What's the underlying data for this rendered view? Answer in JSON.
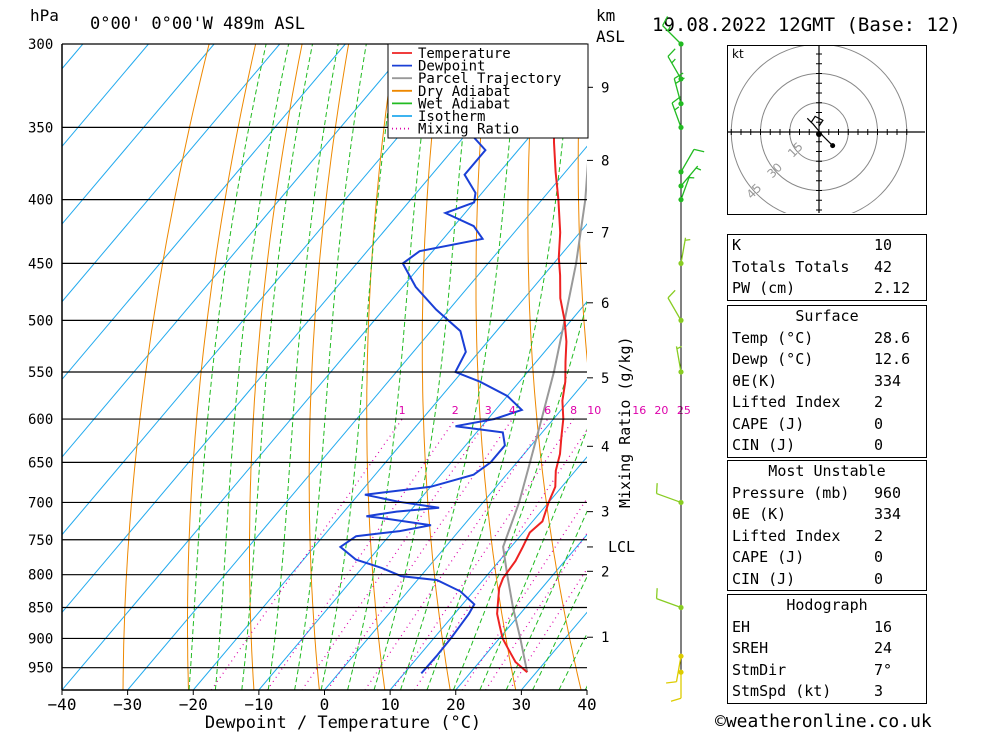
{
  "header": {
    "location": "0°00' 0°00'W 489m ASL",
    "pressure_unit": "hPa",
    "km_unit": "km",
    "asl": "ASL",
    "datetime": "19.08.2022 12GMT (Base: 12)"
  },
  "footer": {
    "copyright": "©weatheronline.co.uk"
  },
  "chart_data": {
    "type": "skew-t",
    "xlabel": "Dewpoint / Temperature (°C)",
    "mixing_ratio_label": "Mixing Ratio (g/kg)",
    "x_ticks": [
      -40,
      -30,
      -20,
      -10,
      0,
      10,
      20,
      30,
      40
    ],
    "x_range": [
      -40,
      40
    ],
    "pressure_ticks": [
      300,
      350,
      400,
      450,
      500,
      550,
      600,
      650,
      700,
      750,
      800,
      850,
      900,
      950
    ],
    "pressure_range": [
      300,
      990
    ],
    "km_ticks": [
      {
        "label": "1",
        "p": 898
      },
      {
        "label": "2",
        "p": 795
      },
      {
        "label": "3",
        "p": 712
      },
      {
        "label": "4",
        "p": 631
      },
      {
        "label": "5",
        "p": 556
      },
      {
        "label": "6",
        "p": 484
      },
      {
        "label": "7",
        "p": 425
      },
      {
        "label": "8",
        "p": 372
      },
      {
        "label": "9",
        "p": 325
      }
    ],
    "lcl": {
      "label": "LCL",
      "p": 760
    },
    "mixing_ratio_values": [
      "1",
      "2",
      "3",
      "4",
      "6",
      "8",
      "10",
      "16",
      "20",
      "25"
    ],
    "legend": [
      {
        "name": "Temperature",
        "color": "#ee2222",
        "style": "solid"
      },
      {
        "name": "Dewpoint",
        "color": "#1a3fd6",
        "style": "solid"
      },
      {
        "name": "Parcel Trajectory",
        "color": "#999999",
        "style": "solid"
      },
      {
        "name": "Dry Adiabat",
        "color": "#ee8800",
        "style": "solid"
      },
      {
        "name": "Wet Adiabat",
        "color": "#22bb22",
        "style": "solid"
      },
      {
        "name": "Isotherm",
        "color": "#22aaee",
        "style": "solid"
      },
      {
        "name": "Mixing Ratio",
        "color": "#dd00aa",
        "style": "dotted"
      }
    ],
    "temperature": [
      [
        958,
        28.6
      ],
      [
        940,
        25.5
      ],
      [
        920,
        23
      ],
      [
        900,
        20.5
      ],
      [
        880,
        18.5
      ],
      [
        860,
        16.5
      ],
      [
        840,
        15
      ],
      [
        820,
        13.5
      ],
      [
        805,
        12.8
      ],
      [
        780,
        12.5
      ],
      [
        760,
        11.8
      ],
      [
        740,
        11
      ],
      [
        725,
        11.5
      ],
      [
        700,
        10
      ],
      [
        680,
        9
      ],
      [
        660,
        7
      ],
      [
        640,
        5.5
      ],
      [
        620,
        3.5
      ],
      [
        600,
        1.5
      ],
      [
        580,
        -1
      ],
      [
        560,
        -3
      ],
      [
        540,
        -5.5
      ],
      [
        520,
        -8
      ],
      [
        500,
        -11
      ],
      [
        480,
        -14.5
      ],
      [
        460,
        -17.5
      ],
      [
        445,
        -20
      ],
      [
        425,
        -23
      ],
      [
        400,
        -27.5
      ],
      [
        380,
        -31.5
      ],
      [
        360,
        -35.5
      ],
      [
        340,
        -39.5
      ],
      [
        320,
        -43.5
      ],
      [
        300,
        -48
      ]
    ],
    "dewpoint": [
      [
        960,
        12.6
      ],
      [
        930,
        12.7
      ],
      [
        900,
        12.6
      ],
      [
        880,
        12.4
      ],
      [
        860,
        12.2
      ],
      [
        845,
        11.8
      ],
      [
        825,
        8
      ],
      [
        808,
        3
      ],
      [
        802,
        -3
      ],
      [
        790,
        -7
      ],
      [
        778,
        -12
      ],
      [
        760,
        -16
      ],
      [
        745,
        -15
      ],
      [
        738,
        -9
      ],
      [
        730,
        -5
      ],
      [
        722,
        -12
      ],
      [
        718,
        -16
      ],
      [
        712,
        -12
      ],
      [
        707,
        -6
      ],
      [
        699,
        -13
      ],
      [
        690,
        -19
      ],
      [
        680,
        -10
      ],
      [
        665,
        -5
      ],
      [
        650,
        -4
      ],
      [
        630,
        -4
      ],
      [
        615,
        -6
      ],
      [
        608,
        -14
      ],
      [
        600,
        -9
      ],
      [
        590,
        -6
      ],
      [
        575,
        -10
      ],
      [
        560,
        -16
      ],
      [
        550,
        -21
      ],
      [
        530,
        -22
      ],
      [
        510,
        -25.5
      ],
      [
        490,
        -32
      ],
      [
        470,
        -38
      ],
      [
        450,
        -43
      ],
      [
        440,
        -42
      ],
      [
        430,
        -34
      ],
      [
        420,
        -37
      ],
      [
        410,
        -43
      ],
      [
        402,
        -40
      ],
      [
        395,
        -41
      ],
      [
        382,
        -45
      ],
      [
        365,
        -45
      ],
      [
        355,
        -49
      ],
      [
        345,
        -56
      ],
      [
        335,
        -60
      ],
      [
        325,
        -65
      ],
      [
        315,
        -64
      ],
      [
        300,
        -71
      ]
    ],
    "parcel": [
      [
        958,
        28.6
      ],
      [
        900,
        23.2
      ],
      [
        850,
        18.1
      ],
      [
        800,
        13.0
      ],
      [
        760,
        8.8
      ],
      [
        700,
        5.5
      ],
      [
        650,
        2.0
      ],
      [
        600,
        -1.8
      ],
      [
        550,
        -6.0
      ],
      [
        500,
        -11.0
      ],
      [
        450,
        -16.6
      ],
      [
        400,
        -23.4
      ],
      [
        350,
        -31.9
      ],
      [
        300,
        -42.5
      ]
    ],
    "wind_barbs": [
      {
        "p": 958,
        "dir": 180,
        "kt": 10
      },
      {
        "p": 930,
        "dir": 190,
        "kt": 10
      },
      {
        "p": 850,
        "dir": 290,
        "kt": 10
      },
      {
        "p": 700,
        "dir": 290,
        "kt": 10
      },
      {
        "p": 550,
        "dir": 350,
        "kt": 5
      },
      {
        "p": 500,
        "dir": 330,
        "kt": 10
      },
      {
        "p": 450,
        "dir": 10,
        "kt": 5
      },
      {
        "p": 400,
        "dir": 20,
        "kt": 5
      },
      {
        "p": 390,
        "dir": 40,
        "kt": 5
      },
      {
        "p": 380,
        "dir": 30,
        "kt": 10
      },
      {
        "p": 350,
        "dir": 340,
        "kt": 15
      },
      {
        "p": 335,
        "dir": 345,
        "kt": 20
      },
      {
        "p": 320,
        "dir": 330,
        "kt": 15
      },
      {
        "p": 300,
        "dir": 315,
        "kt": 15
      }
    ],
    "hodograph": {
      "unit": "kt",
      "ring_labels": [
        "15",
        "30",
        "45"
      ],
      "points": [
        [
          0,
          3
        ],
        [
          2,
          6
        ],
        [
          -2,
          8
        ],
        [
          -4,
          5
        ],
        [
          -6,
          7
        ],
        [
          -3,
          4
        ],
        [
          2,
          -2
        ],
        [
          4,
          -4
        ],
        [
          7,
          -7
        ]
      ]
    }
  },
  "indices": {
    "top": [
      {
        "label": "K",
        "value": "10"
      },
      {
        "label": "Totals Totals",
        "value": "42"
      },
      {
        "label": "PW (cm)",
        "value": "2.12"
      }
    ],
    "surface": {
      "title": "Surface",
      "rows": [
        {
          "label": "Temp (°C)",
          "value": "28.6"
        },
        {
          "label": "Dewp (°C)",
          "value": "12.6"
        },
        {
          "label": "θE(K)",
          "value": "334"
        },
        {
          "label": "Lifted Index",
          "value": "2"
        },
        {
          "label": "CAPE (J)",
          "value": "0"
        },
        {
          "label": "CIN (J)",
          "value": "0"
        }
      ]
    },
    "most_unstable": {
      "title": "Most Unstable",
      "rows": [
        {
          "label": "Pressure (mb)",
          "value": "960"
        },
        {
          "label": "θE (K)",
          "value": "334"
        },
        {
          "label": "Lifted Index",
          "value": "2"
        },
        {
          "label": "CAPE (J)",
          "value": "0"
        },
        {
          "label": "CIN (J)",
          "value": "0"
        }
      ]
    },
    "hodograph": {
      "title": "Hodograph",
      "rows": [
        {
          "label": "EH",
          "value": "16"
        },
        {
          "label": "SREH",
          "value": "24"
        },
        {
          "label": "StmDir",
          "value": "7°"
        },
        {
          "label": "StmSpd (kt)",
          "value": "3"
        }
      ]
    }
  }
}
